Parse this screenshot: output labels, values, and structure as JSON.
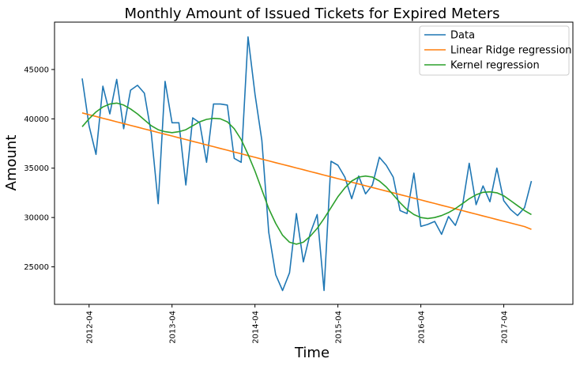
{
  "chart_data": {
    "type": "line",
    "title": "Monthly Amount of Issued Tickets for Expired Meters",
    "xlabel": "Time",
    "ylabel": "Amount",
    "xlim": [
      "2011-11",
      "2018-02"
    ],
    "ylim": [
      21200,
      49800
    ],
    "x_ticks": [
      "2012-04",
      "2013-04",
      "2014-04",
      "2015-04",
      "2016-04",
      "2017-04"
    ],
    "y_ticks": [
      25000,
      30000,
      35000,
      40000,
      45000
    ],
    "grid": false,
    "legend": "top-right",
    "x": [
      "2012-03",
      "2012-04",
      "2012-05",
      "2012-06",
      "2012-07",
      "2012-08",
      "2012-09",
      "2012-10",
      "2012-11",
      "2012-12",
      "2013-01",
      "2013-02",
      "2013-03",
      "2013-04",
      "2013-05",
      "2013-06",
      "2013-07",
      "2013-08",
      "2013-09",
      "2013-10",
      "2013-11",
      "2013-12",
      "2014-01",
      "2014-02",
      "2014-03",
      "2014-04",
      "2014-05",
      "2014-06",
      "2014-07",
      "2014-08",
      "2014-09",
      "2014-10",
      "2014-11",
      "2014-12",
      "2015-01",
      "2015-02",
      "2015-03",
      "2015-04",
      "2015-05",
      "2015-06",
      "2015-07",
      "2015-08",
      "2015-09",
      "2015-10",
      "2015-11",
      "2015-12",
      "2016-01",
      "2016-02",
      "2016-03",
      "2016-04",
      "2016-05",
      "2016-06",
      "2016-07",
      "2016-08",
      "2016-09",
      "2016-10",
      "2016-11",
      "2016-12",
      "2017-01",
      "2017-02",
      "2017-03",
      "2017-04",
      "2017-05",
      "2017-06",
      "2017-07",
      "2017-08"
    ],
    "series": [
      {
        "name": "Data",
        "color": "#1f77b4",
        "values": [
          44100,
          39300,
          36400,
          43300,
          40500,
          44000,
          39000,
          42900,
          43400,
          42600,
          38500,
          31400,
          43800,
          39600,
          39600,
          33300,
          40100,
          39600,
          35600,
          41500,
          41500,
          41400,
          36000,
          35600,
          48300,
          42500,
          37800,
          28500,
          24200,
          22600,
          24400,
          30400,
          25500,
          28400,
          30300,
          22600,
          35700,
          35300,
          34100,
          31900,
          34200,
          32400,
          33300,
          36100,
          35300,
          34100,
          30700,
          30400,
          34500,
          29100,
          29300,
          29600,
          28300,
          30100,
          29200,
          31100,
          35500,
          31300,
          33200,
          31600,
          35000,
          31700,
          30800,
          30200,
          31000,
          33700
        ]
      },
      {
        "name": "Linear Ridge regression",
        "color": "#ff7f0e",
        "values": [
          40600,
          40420,
          40240,
          40060,
          39880,
          39700,
          39520,
          39340,
          39160,
          38980,
          38800,
          38620,
          38440,
          38260,
          38080,
          37900,
          37720,
          37540,
          37360,
          37180,
          37000,
          36820,
          36640,
          36460,
          36280,
          36100,
          35920,
          35740,
          35560,
          35380,
          35200,
          35020,
          34840,
          34660,
          34480,
          34300,
          34120,
          33940,
          33760,
          33580,
          33400,
          33220,
          33040,
          32860,
          32680,
          32500,
          32320,
          32140,
          31960,
          31780,
          31600,
          31420,
          31240,
          31060,
          30880,
          30700,
          30520,
          30340,
          30160,
          29980,
          29800,
          29620,
          29440,
          29260,
          29080,
          28800
        ]
      },
      {
        "name": "Kernel regression",
        "color": "#2ca02c",
        "values": [
          39200,
          40000,
          40700,
          41200,
          41500,
          41600,
          41400,
          41000,
          40500,
          39900,
          39300,
          38900,
          38700,
          38600,
          38700,
          38900,
          39300,
          39700,
          39950,
          40050,
          40000,
          39700,
          39000,
          37900,
          36400,
          34700,
          32800,
          30900,
          29400,
          28200,
          27500,
          27300,
          27500,
          28100,
          28900,
          29900,
          31000,
          32100,
          33000,
          33700,
          34100,
          34200,
          34100,
          33700,
          33100,
          32300,
          31500,
          30800,
          30300,
          30000,
          29900,
          30000,
          30200,
          30500,
          30900,
          31400,
          31900,
          32300,
          32550,
          32600,
          32500,
          32200,
          31700,
          31200,
          30700,
          30300
        ]
      }
    ]
  }
}
